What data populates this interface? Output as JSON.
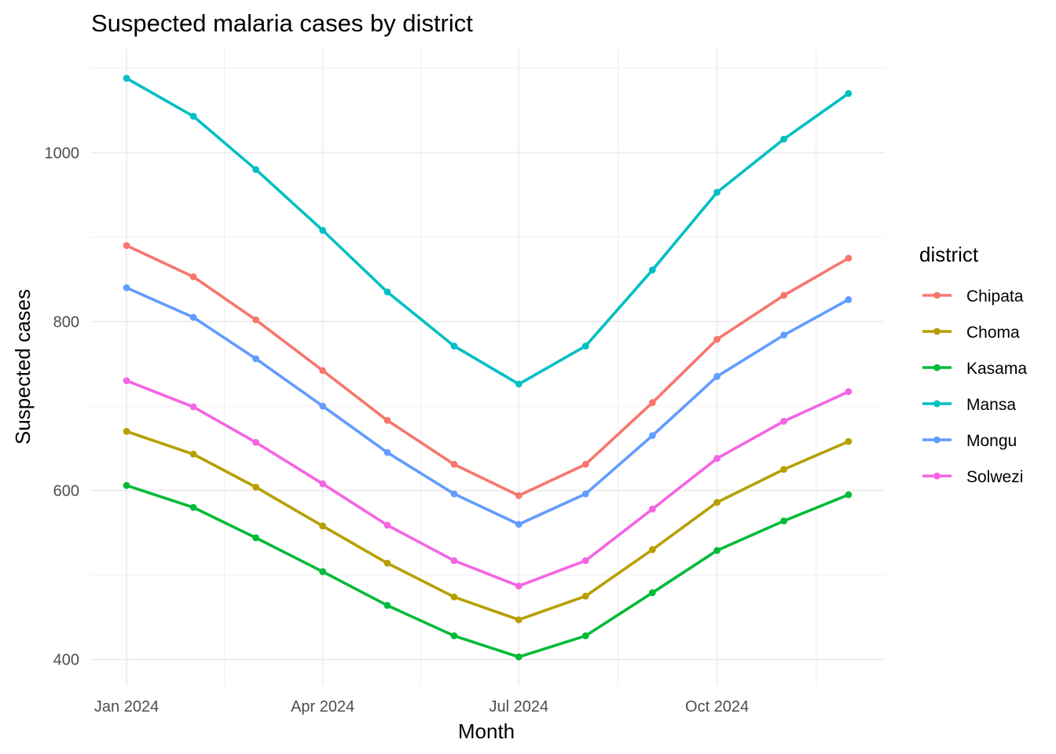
{
  "chart_data": {
    "type": "line",
    "title": "Suspected malaria cases by district",
    "xlabel": "Month",
    "ylabel": "Suspected cases",
    "x": [
      "2024-01",
      "2024-02",
      "2024-03",
      "2024-04",
      "2024-05",
      "2024-06",
      "2024-07",
      "2024-08",
      "2024-09",
      "2024-10",
      "2024-11",
      "2024-12"
    ],
    "x_ticks": [
      {
        "date": "2024-01",
        "label": "Jan 2024"
      },
      {
        "date": "2024-04",
        "label": "Apr 2024"
      },
      {
        "date": "2024-07",
        "label": "Jul 2024"
      },
      {
        "date": "2024-10",
        "label": "Oct 2024"
      }
    ],
    "y_ticks": [
      400,
      600,
      800,
      1000
    ],
    "ylim": [
      369,
      1123
    ],
    "grid": true,
    "legend": {
      "title": "district",
      "placement": "right"
    },
    "series": [
      {
        "name": "Chipata",
        "color": "#F8766D",
        "values": [
          890,
          853,
          802,
          742,
          683,
          631,
          594,
          631,
          704,
          779,
          831,
          875
        ]
      },
      {
        "name": "Choma",
        "color": "#B79F00",
        "values": [
          670,
          643,
          604,
          558,
          514,
          474,
          447,
          475,
          530,
          586,
          625,
          658
        ]
      },
      {
        "name": "Kasama",
        "color": "#00BA38",
        "values": [
          606,
          580,
          544,
          504,
          464,
          428,
          403,
          428,
          479,
          529,
          564,
          595
        ]
      },
      {
        "name": "Mansa",
        "color": "#00BFC4",
        "values": [
          1088,
          1043,
          980,
          908,
          835,
          771,
          726,
          771,
          861,
          953,
          1016,
          1070
        ]
      },
      {
        "name": "Mongu",
        "color": "#619CFF",
        "values": [
          840,
          805,
          756,
          700,
          645,
          596,
          560,
          596,
          665,
          735,
          784,
          826
        ]
      },
      {
        "name": "Solwezi",
        "color": "#F564E3",
        "values": [
          730,
          699,
          657,
          608,
          559,
          517,
          487,
          517,
          578,
          638,
          682,
          717
        ]
      }
    ]
  }
}
